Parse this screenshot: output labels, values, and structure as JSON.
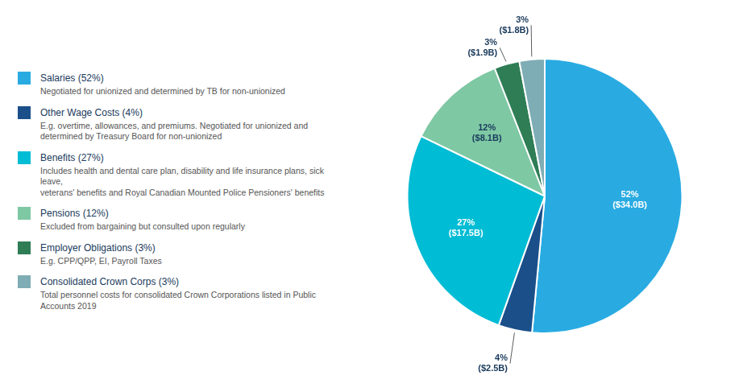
{
  "chart_data": {
    "type": "pie",
    "categories": [
      "Salaries (52%)",
      "Other Wage Costs (4%)",
      "Benefits (27%)",
      "Pensions (12%)",
      "Employer Obligations (3%)",
      "Consolidated Crown Corps (3%)"
    ],
    "values": [
      52,
      4,
      27,
      12,
      3,
      3
    ],
    "colors": [
      "#29ABE2",
      "#1B4F8A",
      "#00BCD4",
      "#7EC8A4",
      "#2E7D55",
      "#7EADB5"
    ],
    "value_labels": [
      "52%\n($34.0B)",
      "4%\n($2.5B)",
      "27%\n($17.5B)",
      "12%\n($8.1B)",
      "3%\n($1.9B)",
      "3%\n($1.8B)"
    ],
    "data_labels": true,
    "annotations": [
      "Negotiated for unionized and determined by TB for non-unionized",
      "E.g. overtime, allowances, and premiums. Negotiated for unionized and\ndetermined by Treasury Board for non-unionized",
      "Includes health and dental care plan, disability and life insurance plans, sick leave,\nveterans' benefits and Royal Canadian Mounted Police Pensioners' benefits",
      "Excluded from bargaining but consulted upon regularly",
      "E.g. CPP/QPP, EI, Payroll Taxes",
      "Total personnel costs for consolidated Crown Corporations listed in Public\nAccounts 2019"
    ],
    "legend": "left"
  }
}
